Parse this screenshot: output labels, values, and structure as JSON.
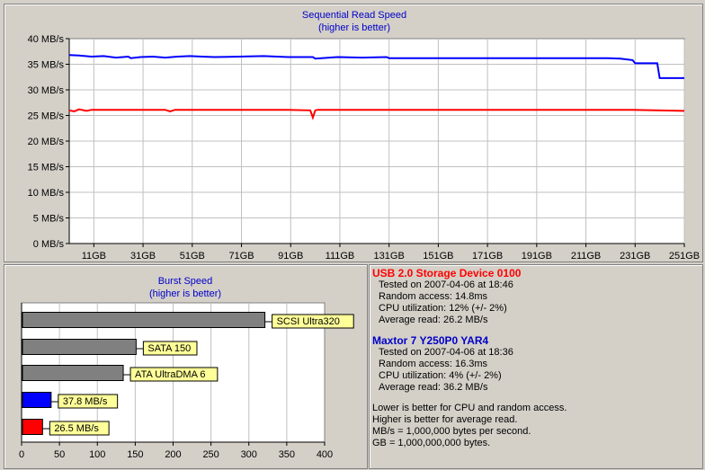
{
  "chart_data": [
    {
      "type": "line",
      "title": "Sequential Read Speed",
      "subtitle": "(higher is better)",
      "y_ticks": [
        "0 MB/s",
        "5 MB/s",
        "10 MB/s",
        "15 MB/s",
        "20 MB/s",
        "25 MB/s",
        "30 MB/s",
        "35 MB/s",
        "40 MB/s"
      ],
      "x_ticks": [
        "11GB",
        "31GB",
        "51GB",
        "71GB",
        "91GB",
        "111GB",
        "131GB",
        "151GB",
        "171GB",
        "191GB",
        "211GB",
        "231GB",
        "251GB"
      ],
      "xlim": [
        1,
        251
      ],
      "ylim": [
        0,
        40
      ],
      "grid": true,
      "series": [
        {
          "color": "#0000ff",
          "x": [
            1,
            5,
            10,
            15,
            20,
            25,
            26,
            30,
            35,
            40,
            45,
            50,
            55,
            60,
            70,
            80,
            90,
            100,
            101,
            110,
            120,
            130,
            131,
            140,
            150,
            160,
            170,
            180,
            190,
            200,
            210,
            220,
            225,
            230,
            231,
            232,
            240,
            241,
            251
          ],
          "y": [
            36.8,
            36.7,
            36.5,
            36.6,
            36.3,
            36.5,
            36.2,
            36.4,
            36.5,
            36.3,
            36.5,
            36.6,
            36.5,
            36.4,
            36.5,
            36.6,
            36.4,
            36.4,
            36.1,
            36.4,
            36.3,
            36.4,
            36.2,
            36.2,
            36.2,
            36.2,
            36.2,
            36.2,
            36.2,
            36.2,
            36.2,
            36.2,
            36.1,
            35.8,
            35.2,
            35.2,
            35.2,
            32.3,
            32.3
          ]
        },
        {
          "color": "#ff0000",
          "x": [
            1,
            3,
            5,
            8,
            10,
            15,
            20,
            40,
            42,
            44,
            50,
            60,
            70,
            80,
            90,
            99,
            100,
            101,
            102,
            110,
            130,
            150,
            170,
            190,
            210,
            230,
            251
          ],
          "y": [
            26.0,
            25.8,
            26.2,
            25.9,
            26.1,
            26.1,
            26.1,
            26.1,
            25.8,
            26.1,
            26.1,
            26.1,
            26.1,
            26.1,
            26.1,
            26.0,
            24.6,
            26.0,
            26.1,
            26.1,
            26.1,
            26.1,
            26.1,
            26.1,
            26.1,
            26.1,
            25.9
          ]
        }
      ]
    },
    {
      "type": "bar",
      "orientation": "horizontal",
      "title": "Burst Speed",
      "subtitle": "(higher is better)",
      "x_ticks": [
        "0",
        "50",
        "100",
        "150",
        "200",
        "250",
        "300",
        "350",
        "400"
      ],
      "xlim": [
        0,
        400
      ],
      "bars": [
        {
          "value": 320,
          "label": "SCSI Ultra320",
          "color": "#808080"
        },
        {
          "value": 150,
          "label": "SATA 150",
          "color": "#808080"
        },
        {
          "value": 133,
          "label": "ATA UltraDMA 6",
          "color": "#808080"
        },
        {
          "value": 37.8,
          "label": "37.8 MB/s",
          "color": "#0000ff"
        },
        {
          "value": 26.5,
          "label": "26.5 MB/s",
          "color": "#ff0000"
        }
      ],
      "label_bg": "#ffff99"
    }
  ],
  "devices": [
    {
      "name": "USB 2.0 Storage Device 0100",
      "color": "#ff0000",
      "tested": "Tested on 2007-04-06 at 18:46",
      "random_access": "Random access: 14.8ms",
      "cpu": "CPU utilization: 12% (+/- 2%)",
      "average": "Average read: 26.2 MB/s"
    },
    {
      "name": "Maxtor 7 Y250P0 YAR4",
      "color": "#0000c8",
      "tested": "Tested on 2007-04-06 at 18:36",
      "random_access": "Random access: 16.3ms",
      "cpu": "CPU utilization: 4% (+/- 2%)",
      "average": "Average read: 36.2 MB/s"
    }
  ],
  "notes": [
    "Lower is better for CPU and random access.",
    "Higher is better for average read.",
    "MB/s = 1,000,000 bytes per second.",
    "GB = 1,000,000,000 bytes."
  ],
  "colors": {
    "title": "#0000c8",
    "grid": "#c0c0c0",
    "plot_bg": "#ffffff"
  }
}
